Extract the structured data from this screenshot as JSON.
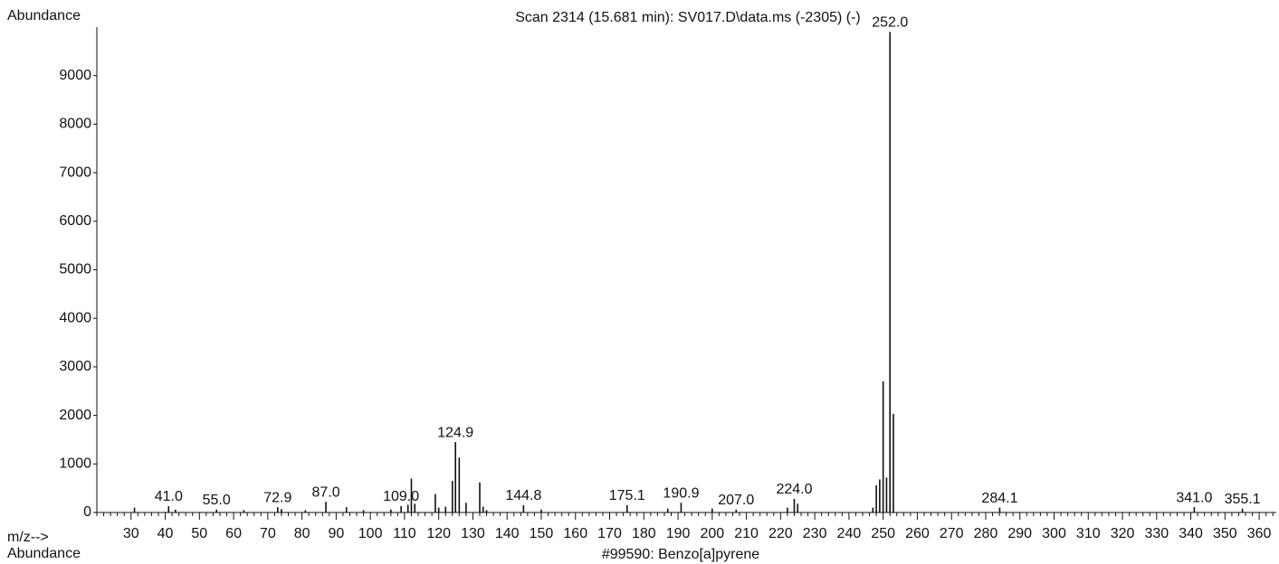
{
  "chart_data": {
    "type": "spectrum",
    "title": "Scan 2314 (15.681 min): SV017.D\\data.ms (-2305) (-)",
    "subtitle": "#99590: Benzo[a]pyrene",
    "y_label": "Abundance",
    "x_label": "m/z-->",
    "x_label_secondary": "Abundance",
    "color": "#111111",
    "xlim": [
      20,
      365
    ],
    "ylim": [
      0,
      10000
    ],
    "xticks": [
      30,
      40,
      50,
      60,
      70,
      80,
      90,
      100,
      110,
      120,
      130,
      140,
      150,
      160,
      170,
      180,
      190,
      200,
      210,
      220,
      230,
      240,
      250,
      260,
      270,
      280,
      290,
      300,
      310,
      320,
      330,
      340,
      350,
      360
    ],
    "yticks": [
      0,
      1000,
      2000,
      3000,
      4000,
      5000,
      6000,
      7000,
      8000,
      9000
    ],
    "x": [
      31,
      41,
      43,
      55,
      63,
      72.9,
      74,
      81,
      87,
      93,
      98,
      106,
      109,
      111,
      112,
      113,
      119,
      120,
      122,
      124,
      124.9,
      126,
      128,
      132,
      133,
      134,
      144.8,
      150,
      175.1,
      187,
      190.9,
      200,
      207,
      222,
      224,
      225,
      247,
      248,
      249,
      250,
      251,
      252,
      253,
      284.1,
      341,
      355.1
    ],
    "values": [
      100,
      130,
      60,
      60,
      50,
      110,
      70,
      50,
      220,
      110,
      50,
      60,
      130,
      160,
      700,
      180,
      380,
      100,
      120,
      650,
      1450,
      1130,
      200,
      620,
      120,
      50,
      150,
      60,
      150,
      80,
      200,
      80,
      60,
      100,
      280,
      180,
      100,
      560,
      680,
      2700,
      720,
      9900,
      2030,
      100,
      110,
      80
    ],
    "x_labels": [
      null,
      "41.0",
      null,
      "55.0",
      null,
      "72.9",
      null,
      null,
      "87.0",
      null,
      null,
      null,
      "109.0",
      null,
      null,
      null,
      null,
      null,
      null,
      null,
      "124.9",
      null,
      null,
      null,
      null,
      null,
      "144.8",
      null,
      "175.1",
      null,
      "190.9",
      null,
      "207.0",
      null,
      "224.0",
      null,
      null,
      null,
      null,
      null,
      null,
      "252.0",
      null,
      "284.1",
      "341.0",
      "355.1"
    ]
  }
}
